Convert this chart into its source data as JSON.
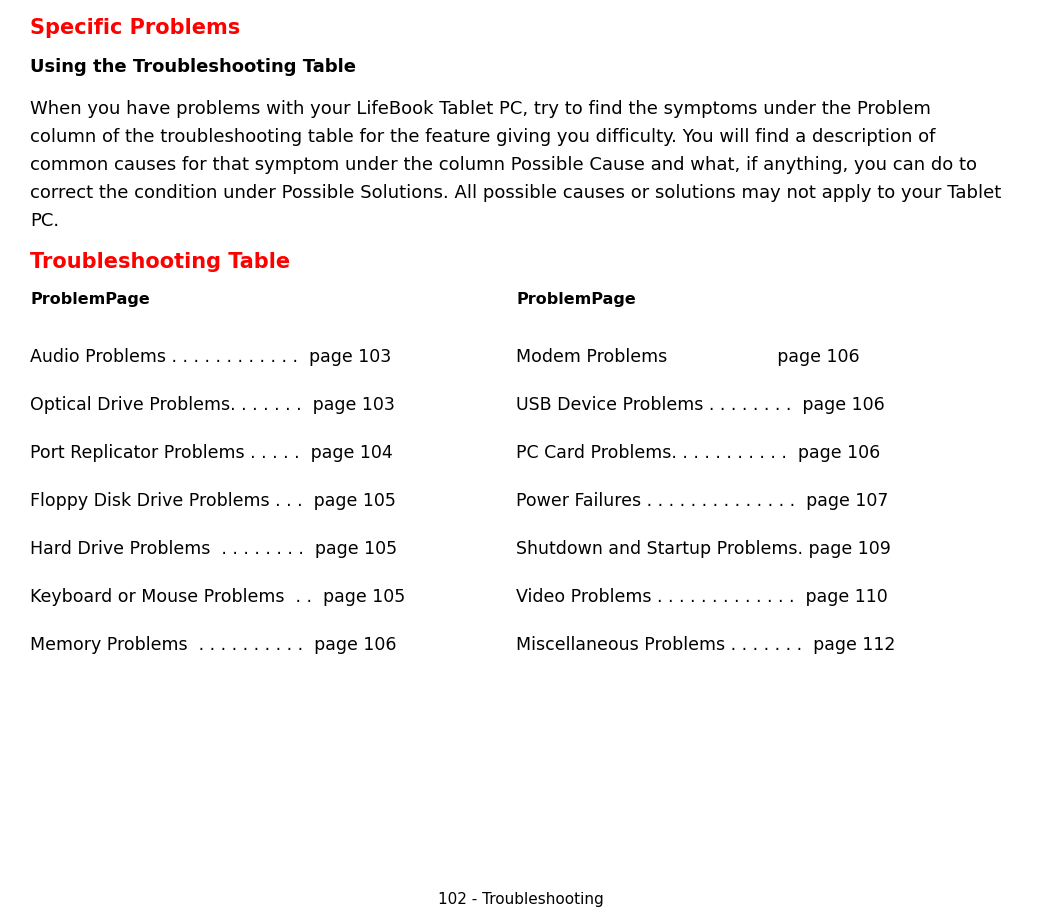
{
  "bg_color": "#ffffff",
  "title_specific": "Specific Problems",
  "title_specific_color": "#ff0000",
  "title_specific_fontsize": 15,
  "subtitle": "Using the Troubleshooting Table",
  "subtitle_fontsize": 13,
  "body_lines": [
    "When you have problems with your LifeBook Tablet PC, try to find the symptoms under the Problem",
    "column of the troubleshooting table for the feature giving you difficulty. You will find a description of",
    "common causes for that symptom under the column Possible Cause and what, if anything, you can do to",
    "correct the condition under Possible Solutions. All possible causes or solutions may not apply to your Tablet",
    "PC."
  ],
  "body_fontsize": 13,
  "table_title": "Troubleshooting Table",
  "table_title_color": "#ff0000",
  "table_title_fontsize": 15,
  "col_header_left": "ProblemPage",
  "col_header_right": "ProblemPage",
  "col_header_fontsize": 11.5,
  "left_entries": [
    "Audio Problems . . . . . . . . . . . .  page 103",
    "Optical Drive Problems. . . . . . .  page 103",
    "Port Replicator Problems . . . . .  page 104",
    "Floppy Disk Drive Problems . . .  page 105",
    "Hard Drive Problems  . . . . . . . .  page 105",
    "Keyboard or Mouse Problems  . .  page 105",
    "Memory Problems  . . . . . . . . . .  page 106"
  ],
  "right_entries": [
    "Modem Problems                    page 106",
    "USB Device Problems . . . . . . . .  page 106",
    "PC Card Problems. . . . . . . . . . .  page 106",
    "Power Failures . . . . . . . . . . . . . .  page 107",
    "Shutdown and Startup Problems. page 109",
    "Video Problems . . . . . . . . . . . . .  page 110",
    "Miscellaneous Problems . . . . . . .  page 112"
  ],
  "entry_fontsize": 12.5,
  "footer_text": "102 - Troubleshooting",
  "footer_fontsize": 11
}
